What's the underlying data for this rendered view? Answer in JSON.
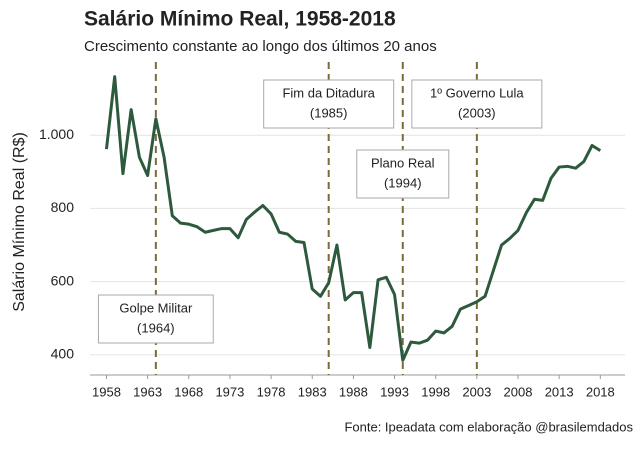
{
  "chart_data": {
    "type": "line",
    "title": "Salário Mínimo Real, 1958-2018",
    "subtitle": "Crescimento constante ao longo dos últimos 20 anos",
    "y_label": "Salário Mínimo Real (R$)",
    "source": "Fonte: Ipeadata com elaboração @brasilemdados",
    "x": [
      1958,
      1959,
      1960,
      1961,
      1962,
      1963,
      1964,
      1965,
      1966,
      1967,
      1968,
      1969,
      1970,
      1971,
      1972,
      1973,
      1974,
      1975,
      1976,
      1977,
      1978,
      1979,
      1980,
      1981,
      1982,
      1983,
      1984,
      1985,
      1986,
      1987,
      1988,
      1989,
      1990,
      1991,
      1992,
      1993,
      1994,
      1995,
      1996,
      1997,
      1998,
      1999,
      2000,
      2001,
      2002,
      2003,
      2004,
      2005,
      2006,
      2007,
      2008,
      2009,
      2010,
      2011,
      2012,
      2013,
      2014,
      2015,
      2016,
      2017,
      2018
    ],
    "series": [
      {
        "name": "Salário Mínimo Real",
        "color": "#2d5a3d",
        "values": [
          962,
          1160,
          895,
          1070,
          940,
          890,
          1045,
          940,
          780,
          760,
          757,
          750,
          735,
          740,
          745,
          745,
          720,
          770,
          790,
          808,
          785,
          735,
          730,
          710,
          707,
          580,
          560,
          597,
          700,
          550,
          570,
          570,
          420,
          605,
          612,
          565,
          385,
          435,
          432,
          440,
          465,
          460,
          478,
          525,
          535,
          545,
          560,
          630,
          700,
          718,
          740,
          788,
          825,
          822,
          882,
          913,
          915,
          910,
          928,
          972,
          958
        ]
      }
    ],
    "xlim": [
      1956,
      2021
    ],
    "xticks": [
      1958,
      1963,
      1968,
      1973,
      1978,
      1983,
      1988,
      1993,
      1998,
      2003,
      2008,
      2013,
      2018
    ],
    "ylim": [
      345,
      1200
    ],
    "yticks": [
      400,
      600,
      800,
      {
        "value": 1000,
        "label": "1.000"
      }
    ],
    "grid": true,
    "annotations": [
      {
        "x": 1964,
        "lines": [
          "Golpe Militar",
          "(1964)"
        ]
      },
      {
        "x": 1985,
        "lines": [
          "Fim da Ditadura",
          "(1985)"
        ]
      },
      {
        "x": 1994,
        "lines": [
          "Plano Real",
          "(1994)"
        ]
      },
      {
        "x": 2003,
        "lines": [
          "1º Governo Lula",
          "(2003)"
        ]
      }
    ],
    "annotation_color": "#7d6a3a"
  }
}
